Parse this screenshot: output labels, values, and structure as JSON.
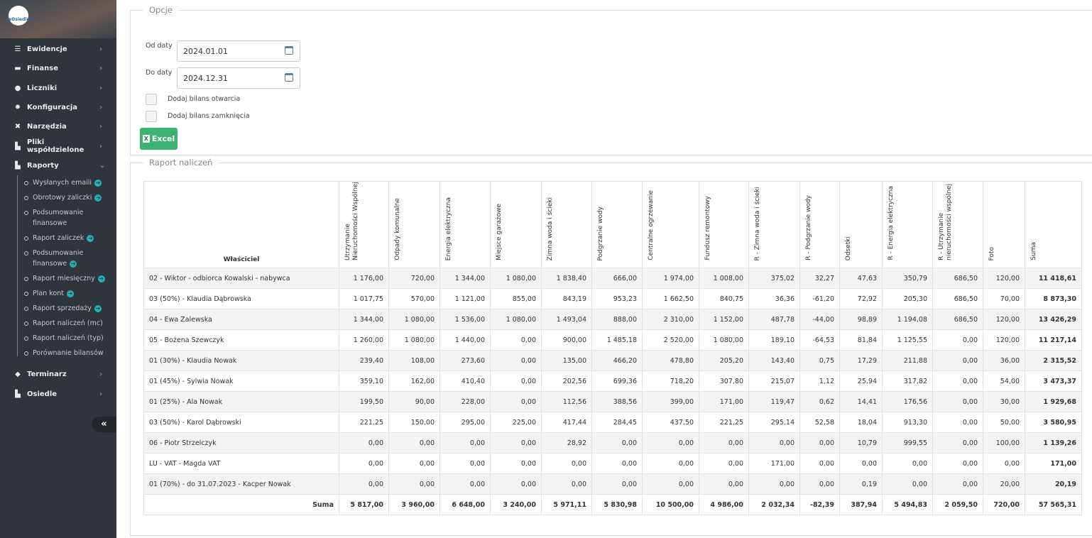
{
  "sidebar": {
    "logo": "wOsiedle",
    "items": [
      {
        "label": "Ewidencje",
        "icon": "list-icon"
      },
      {
        "label": "Finanse",
        "icon": "money-icon"
      },
      {
        "label": "Liczniki",
        "icon": "clock-icon"
      },
      {
        "label": "Konfiguracja",
        "icon": "gear-icon"
      },
      {
        "label": "Narzędzia",
        "icon": "tools-icon"
      },
      {
        "label": "Pliki współdzielone",
        "icon": "file-share-icon"
      },
      {
        "label": "Raporty",
        "icon": "file-report-icon"
      }
    ],
    "raporty_sub": [
      {
        "label": "Wysłanych emaili",
        "go": true
      },
      {
        "label": "Obrotowy zaliczki",
        "go": true
      },
      {
        "label": "Podsumowanie finansowe",
        "go": false
      },
      {
        "label": "Raport zaliczek",
        "go": true
      },
      {
        "label": "Podsumowanie finansowe",
        "go": true
      },
      {
        "label": "Raport miesięczny",
        "go": true
      },
      {
        "label": "Plan kont",
        "go": true
      },
      {
        "label": "Raport sprzedaży",
        "go": true
      },
      {
        "label": "Raport naliczeń (mc)",
        "go": false
      },
      {
        "label": "Raport naliczeń (typ)",
        "go": false
      },
      {
        "label": "Porównanie bilansów",
        "go": false
      }
    ],
    "bottom_items": [
      {
        "label": "Terminarz",
        "icon": "diamond-icon"
      },
      {
        "label": "Osiedle",
        "icon": "file-share-icon"
      }
    ],
    "collapse": "«"
  },
  "options": {
    "legend": "Opcje",
    "from_label": "Od daty",
    "from_value": "2024.01.01",
    "to_label": "Do daty",
    "to_value": "2024.12.31",
    "opening_label": "Dodaj bilans otwarcia",
    "opening_checked": false,
    "closing_label": "Dodaj bilans zamknięcia",
    "closing_checked": false,
    "excel_label": "Excel"
  },
  "report": {
    "legend": "Raport naliczeń",
    "owner_header": "Właściciel",
    "headers": [
      "Utrzymanie Nieruchomości Wspólnej",
      "Odpady komunalne",
      "Energia elektryczna",
      "Miejsce garażowe",
      "Zimna woda i ścieki",
      "Podgrzanie wody",
      "Centralne ogrzewanie",
      "Fundusz remontowy",
      "R - Zimna woda i ścieki",
      "R - Podgrzanie wody",
      "Odsetki",
      "R - Energia elektryczna",
      "R - Utrzymanie nieruchomości wspólnej",
      "Foto",
      "Suma"
    ],
    "rows": [
      {
        "name": "02 - Wiktor - odbiorca Kowalski - nabywca",
        "values": [
          "1 176,00",
          "720,00",
          "1 344,00",
          "1 080,00",
          "1 838,40",
          "666,00",
          "1 974,00",
          "1 008,00",
          "375,02",
          "32,27",
          "47,63",
          "350,79",
          "686,50",
          "120,00",
          "11 418,61"
        ]
      },
      {
        "name": "03 (50%) - Klaudia Dąbrowska",
        "values": [
          "1 017,75",
          "570,00",
          "1 121,00",
          "855,00",
          "843,19",
          "953,23",
          "1 662,50",
          "840,75",
          "36,36",
          "-61,20",
          "72,92",
          "205,30",
          "686,50",
          "70,00",
          "8 873,30"
        ]
      },
      {
        "name": "04 - Ewa Zalewska",
        "values": [
          "1 344,00",
          "1 080,00",
          "1 536,00",
          "1 080,00",
          "1 493,04",
          "888,00",
          "2 310,00",
          "1 152,00",
          "487,78",
          "-44,00",
          "98,89",
          "1 194,08",
          "686,50",
          "120,00",
          "13 426,29"
        ]
      },
      {
        "name": "05 - Bożena Szewczyk",
        "values": [
          "1 260,00",
          "1 080,00",
          "1 440,00",
          "0,00",
          "900,00",
          "1 485,18",
          "2 520,00",
          "1 080,00",
          "189,10",
          "-64,53",
          "81,84",
          "1 125,55",
          "0,00",
          "120,00",
          "11 217,14"
        ]
      },
      {
        "name": "01 (30%) - Klaudia Nowak",
        "values": [
          "239,40",
          "108,00",
          "273,60",
          "0,00",
          "135,00",
          "466,20",
          "478,80",
          "205,20",
          "143,40",
          "0,75",
          "17,29",
          "211,88",
          "0,00",
          "36,00",
          "2 315,52"
        ]
      },
      {
        "name": "01 (45%) - Sylwia Nowak",
        "values": [
          "359,10",
          "162,00",
          "410,40",
          "0,00",
          "202,56",
          "699,36",
          "718,20",
          "307,80",
          "215,07",
          "1,12",
          "25,94",
          "317,82",
          "0,00",
          "54,00",
          "3 473,37"
        ]
      },
      {
        "name": "01 (25%) - Ala Nowak",
        "values": [
          "199,50",
          "90,00",
          "228,00",
          "0,00",
          "112,56",
          "388,56",
          "399,00",
          "171,00",
          "119,47",
          "0,62",
          "14,41",
          "176,56",
          "0,00",
          "30,00",
          "1 929,68"
        ]
      },
      {
        "name": "03 (50%) - Karol Dąbrowski",
        "values": [
          "221,25",
          "150,00",
          "295,00",
          "225,00",
          "417,44",
          "284,45",
          "437,50",
          "221,25",
          "295,14",
          "52,58",
          "18,04",
          "913,30",
          "0,00",
          "50,00",
          "3 580,95"
        ]
      },
      {
        "name": "06 - Piotr Strzelczyk",
        "values": [
          "0,00",
          "0,00",
          "0,00",
          "0,00",
          "28,92",
          "0,00",
          "0,00",
          "0,00",
          "0,00",
          "0,00",
          "10,79",
          "999,55",
          "0,00",
          "100,00",
          "1 139,26"
        ]
      },
      {
        "name": "LU - VAT - Magda VAT",
        "values": [
          "0,00",
          "0,00",
          "0,00",
          "0,00",
          "0,00",
          "0,00",
          "0,00",
          "0,00",
          "171,00",
          "0,00",
          "0,00",
          "0,00",
          "0,00",
          "0,00",
          "171,00"
        ]
      },
      {
        "name": "01 (70%) - do 31.07.2023 - Kacper Nowak",
        "values": [
          "0,00",
          "0,00",
          "0,00",
          "0,00",
          "0,00",
          "0,00",
          "0,00",
          "0,00",
          "0,00",
          "0,00",
          "0,19",
          "0,00",
          "0,00",
          "20,00",
          "20,19"
        ]
      }
    ],
    "total": {
      "name": "Suma",
      "values": [
        "5 817,00",
        "3 960,00",
        "6 648,00",
        "3 240,00",
        "5 971,11",
        "5 830,98",
        "10 500,00",
        "4 986,00",
        "2 032,34",
        "-82,39",
        "387,94",
        "5 494,83",
        "2 059,50",
        "720,00",
        "57 565,31"
      ]
    }
  }
}
